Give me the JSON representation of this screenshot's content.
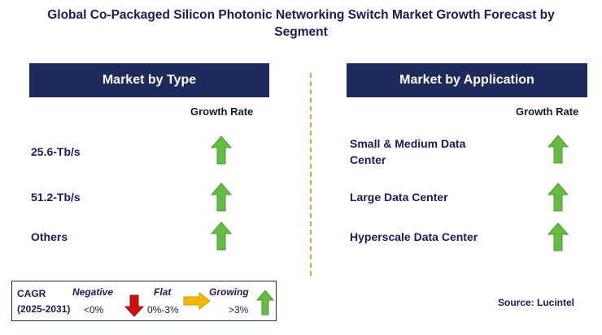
{
  "title": "Global Co-Packaged Silicon Photonic Networking Switch Market Growth Forecast by Segment",
  "left_panel": {
    "heading": "Market by Type",
    "column_header": "Growth Rate",
    "rows": [
      {
        "label": "25.6-Tb/s",
        "trend": "growing"
      },
      {
        "label": "51.2-Tb/s",
        "trend": "growing"
      },
      {
        "label": "Others",
        "trend": "growing"
      }
    ]
  },
  "right_panel": {
    "heading": "Market by Application",
    "column_header": "Growth Rate",
    "rows": [
      {
        "label": "Small & Medium Data Center",
        "trend": "growing"
      },
      {
        "label": "Large Data Center",
        "trend": "growing"
      },
      {
        "label": "Hyperscale Data Center",
        "trend": "growing"
      }
    ]
  },
  "legend": {
    "cagr_label": "CAGR",
    "period": "(2025-2031)",
    "negative_label": "Negative",
    "negative_range": "<0%",
    "flat_label": "Flat",
    "flat_range": "0%-3%",
    "growing_label": "Growing",
    "growing_range": ">3%"
  },
  "source": "Source: Lucintel",
  "colors": {
    "header_bg": "#1f2a5c",
    "growing_arrow": "#66bb44",
    "negative_arrow": "#cc1111",
    "flat_arrow": "#f5b800",
    "divider": "#f0a030"
  }
}
